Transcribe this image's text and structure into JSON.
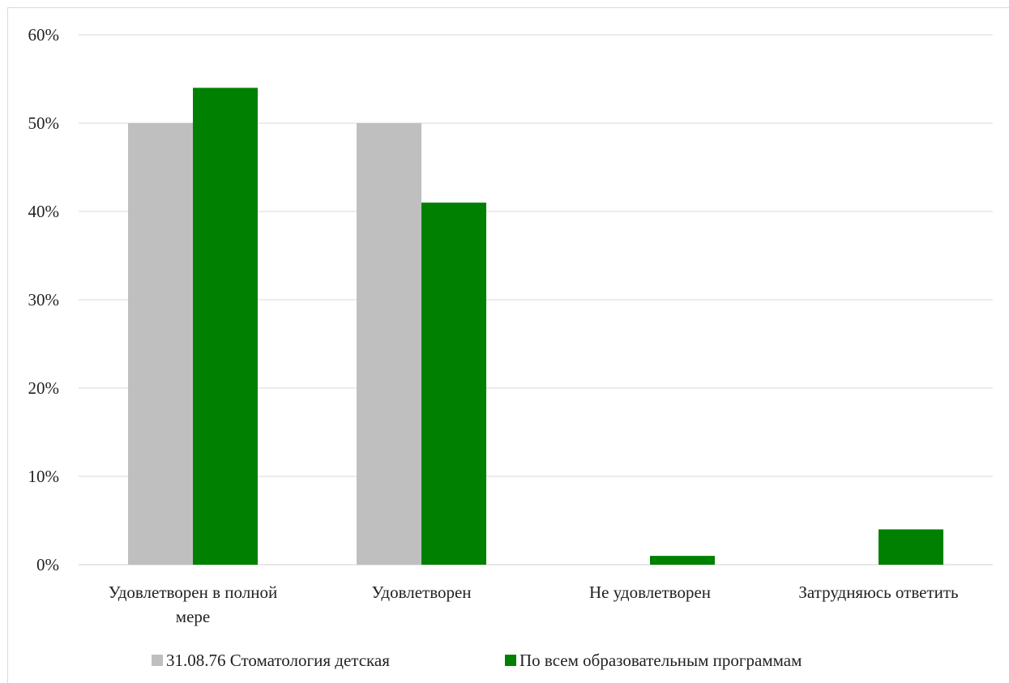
{
  "chart_data": {
    "type": "bar",
    "categories": [
      [
        "Удовлетворен в полной",
        "мере"
      ],
      [
        "Удовлетворен"
      ],
      [
        "Не удовлетворен"
      ],
      [
        "Затрудняюсь ответить"
      ]
    ],
    "series": [
      {
        "name": "31.08.76 Стоматология детская",
        "color": "#bfbfbf",
        "values": [
          50,
          50,
          0,
          0
        ]
      },
      {
        "name": "По всем образовательным программам",
        "color": "#008000",
        "values": [
          54,
          41,
          1,
          4
        ]
      }
    ],
    "ylim": [
      0,
      60
    ],
    "yticks": [
      "0%",
      "10%",
      "20%",
      "30%",
      "40%",
      "50%",
      "60%"
    ],
    "grid": true,
    "legend_position": "bottom"
  }
}
